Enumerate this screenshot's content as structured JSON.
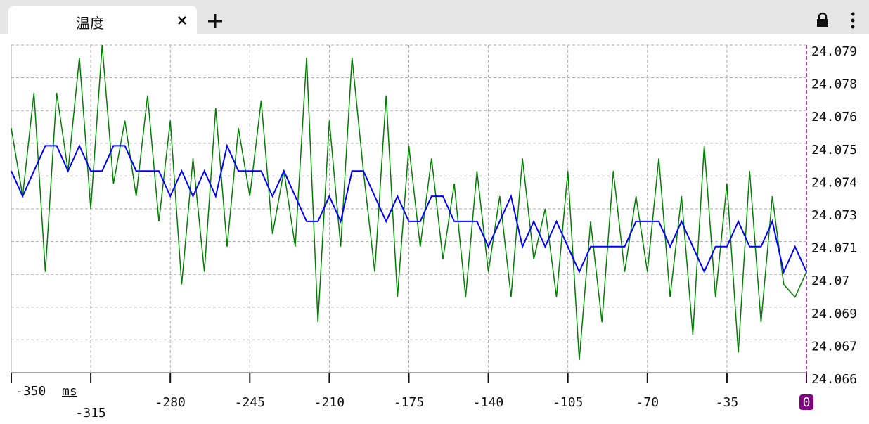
{
  "tab_title": "温度",
  "chart_data": {
    "type": "line",
    "x_label": "ms",
    "x": [
      -350,
      -345,
      -340,
      -335,
      -330,
      -325,
      -320,
      -315,
      -310,
      -305,
      -300,
      -295,
      -290,
      -285,
      -280,
      -275,
      -270,
      -265,
      -260,
      -255,
      -250,
      -245,
      -240,
      -235,
      -230,
      -225,
      -220,
      -215,
      -210,
      -205,
      -200,
      -195,
      -190,
      -185,
      -180,
      -175,
      -170,
      -165,
      -160,
      -155,
      -150,
      -145,
      -140,
      -135,
      -130,
      -125,
      -120,
      -115,
      -110,
      -105,
      -100,
      -95,
      -90,
      -85,
      -80,
      -75,
      -70,
      -65,
      -60,
      -55,
      -50,
      -45,
      -40,
      -35,
      -30,
      -25,
      -20,
      -15,
      -10,
      -5,
      0
    ],
    "series": [
      {
        "color": "#008000",
        "values": [
          24.0757,
          24.073,
          24.0771,
          24.07,
          24.0771,
          24.074,
          24.0785,
          24.0725,
          24.079,
          24.0735,
          24.076,
          24.073,
          24.077,
          24.072,
          24.076,
          24.0695,
          24.0745,
          24.07,
          24.0765,
          24.071,
          24.0757,
          24.073,
          24.0768,
          24.0715,
          24.074,
          24.071,
          24.0785,
          24.068,
          24.076,
          24.071,
          24.0785,
          24.074,
          24.07,
          24.077,
          24.069,
          24.075,
          24.071,
          24.0745,
          24.0705,
          24.0735,
          24.069,
          24.074,
          24.07,
          24.073,
          24.069,
          24.0745,
          24.0705,
          24.0725,
          24.069,
          24.074,
          24.0665,
          24.072,
          24.068,
          24.074,
          24.07,
          24.073,
          24.07,
          24.0745,
          24.069,
          24.073,
          24.0675,
          24.075,
          24.069,
          24.0735,
          24.0668,
          24.074,
          24.068,
          24.073,
          24.0695,
          24.069,
          24.07
        ]
      },
      {
        "color": "#0000ff",
        "values": [
          24.074,
          24.073,
          24.074,
          24.075,
          24.075,
          24.074,
          24.075,
          24.074,
          24.074,
          24.075,
          24.075,
          24.074,
          24.074,
          24.074,
          24.073,
          24.074,
          24.073,
          24.074,
          24.073,
          24.075,
          24.074,
          24.074,
          24.074,
          24.073,
          24.074,
          24.073,
          24.072,
          24.072,
          24.073,
          24.072,
          24.074,
          24.074,
          24.073,
          24.072,
          24.073,
          24.072,
          24.072,
          24.073,
          24.073,
          24.072,
          24.072,
          24.072,
          24.071,
          24.072,
          24.073,
          24.071,
          24.072,
          24.071,
          24.072,
          24.071,
          24.07,
          24.071,
          24.071,
          24.071,
          24.071,
          24.072,
          24.072,
          24.072,
          24.071,
          24.072,
          24.071,
          24.07,
          24.071,
          24.071,
          24.072,
          24.071,
          24.071,
          24.072,
          24.07,
          24.071,
          24.07
        ]
      }
    ],
    "xlim": [
      -350,
      0
    ],
    "xticks": [
      -350,
      -315,
      -280,
      -245,
      -210,
      -175,
      -140,
      -105,
      -70,
      -35,
      0
    ],
    "ylim": [
      24.066,
      24.079
    ],
    "yticks": [
      24.066,
      {
        "value": 24.0673,
        "label": "24.067"
      },
      {
        "value": 24.0686,
        "label": "24.069"
      },
      {
        "value": 24.0699,
        "label": "24.07"
      },
      {
        "value": 24.0712,
        "label": "24.071"
      },
      {
        "value": 24.0725,
        "label": "24.073"
      },
      {
        "value": 24.0738,
        "label": "24.074"
      },
      {
        "value": 24.0751,
        "label": "24.075"
      },
      {
        "value": 24.0764,
        "label": "24.076"
      },
      {
        "value": 24.0777,
        "label": "24.078"
      },
      24.079
    ],
    "grid": true
  }
}
